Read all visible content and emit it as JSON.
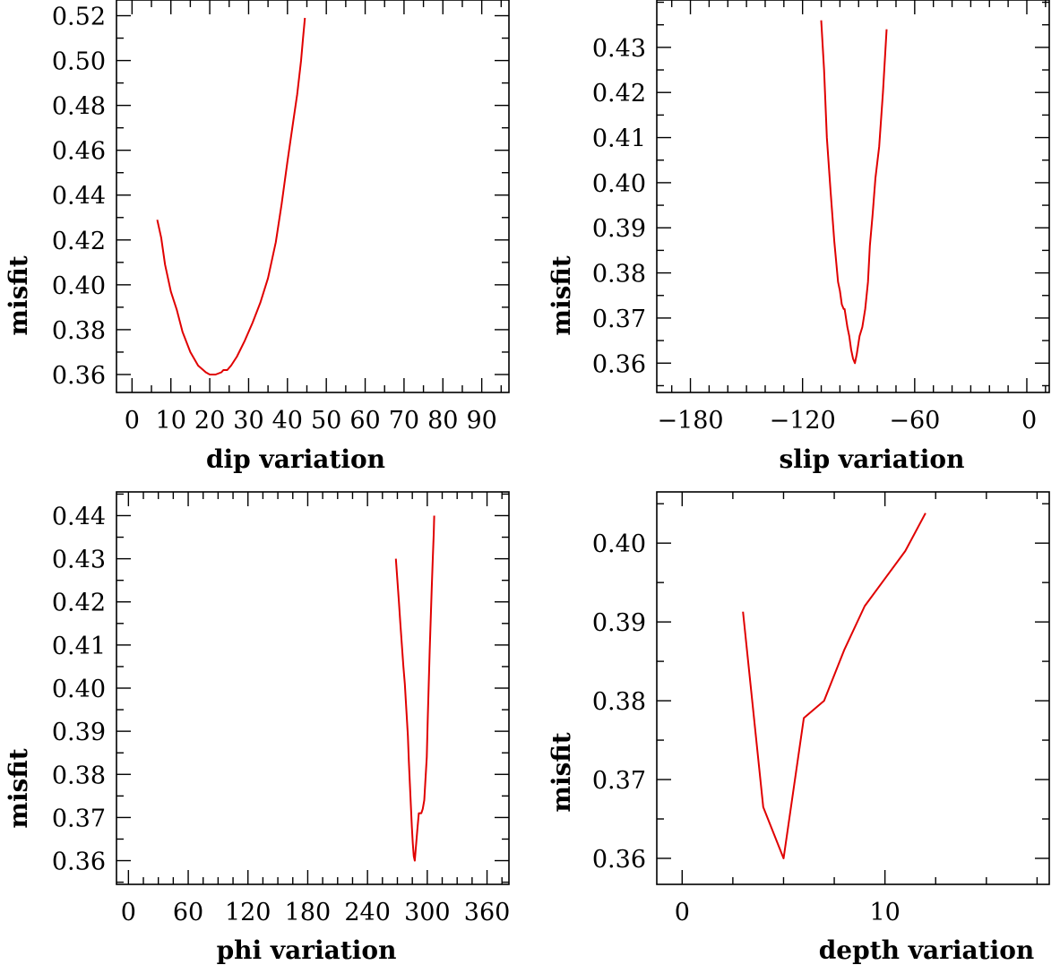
{
  "chart_data": [
    {
      "type": "line",
      "xlabel": "dip     variation",
      "ylabel": "misfit",
      "xlim": [
        -4,
        97
      ],
      "ylim": [
        0.352,
        0.527
      ],
      "xticks": [
        0,
        10,
        20,
        30,
        40,
        50,
        60,
        70,
        80,
        90
      ],
      "xtick_labels": [
        "0",
        "10",
        "20",
        "30",
        "40",
        "50",
        "60",
        "70",
        "80",
        "90"
      ],
      "xtick_anchor": [
        "middle",
        "middle",
        "middle",
        "middle",
        "middle",
        "middle",
        "middle",
        "middle",
        "middle",
        "middle"
      ],
      "yticks": [
        0.36,
        0.38,
        0.4,
        0.42,
        0.44,
        0.46,
        0.48,
        0.5,
        0.52
      ],
      "ytick_labels": [
        "0.36",
        "0.38",
        "0.40",
        "0.42",
        "0.44",
        "0.46",
        "0.48",
        "0.50",
        "0.52"
      ],
      "x_minor_step": 5,
      "y_minor_step": 0.01,
      "color": "#e00000",
      "series": [
        {
          "x": [
            6.5,
            7.5,
            8.5,
            10,
            11.5,
            13,
            15,
            17,
            19,
            20,
            21.5,
            23,
            23.5,
            24.5,
            25.5,
            27,
            29,
            31,
            33,
            35,
            37,
            38.5,
            40,
            41.5,
            42.5,
            43.5,
            44,
            44.5
          ],
          "y": [
            0.429,
            0.421,
            0.409,
            0.397,
            0.389,
            0.379,
            0.37,
            0.364,
            0.361,
            0.36,
            0.36,
            0.361,
            0.362,
            0.362,
            0.364,
            0.368,
            0.375,
            0.383,
            0.392,
            0.403,
            0.419,
            0.436,
            0.455,
            0.473,
            0.485,
            0.5,
            0.51,
            0.519
          ]
        }
      ]
    },
    {
      "type": "line",
      "xlabel": "slip    variation",
      "ylabel": "misfit",
      "xlim": [
        -198,
        12
      ],
      "ylim": [
        0.3535,
        0.4405
      ],
      "xticks": [
        -180,
        -120,
        -60,
        0
      ],
      "xtick_labels": [
        "−180",
        "−120",
        "−60",
        "0"
      ],
      "xtick_anchor": [
        "middle",
        "middle",
        "middle",
        "start"
      ],
      "yticks": [
        0.36,
        0.37,
        0.38,
        0.39,
        0.4,
        0.41,
        0.42,
        0.43
      ],
      "ytick_labels": [
        "0.36",
        "0.37",
        "0.38",
        "0.39",
        "0.40",
        "0.41",
        "0.42",
        "0.43"
      ],
      "x_minor_step": 10,
      "y_minor_step": 0.005,
      "color": "#e00000",
      "series": [
        {
          "x": [
            -110,
            -108.5,
            -107,
            -105,
            -103,
            -101,
            -100,
            -99,
            -98,
            -97.5,
            -96,
            -95,
            -94,
            -93,
            -92,
            -91,
            -89.5,
            -88,
            -86.5,
            -85,
            -84,
            -82.5,
            -81,
            -79,
            -77,
            -75
          ],
          "y": [
            0.436,
            0.425,
            0.41,
            0.398,
            0.387,
            0.378,
            0.376,
            0.373,
            0.372,
            0.372,
            0.368,
            0.366,
            0.363,
            0.361,
            0.36,
            0.362,
            0.366,
            0.368,
            0.372,
            0.378,
            0.386,
            0.393,
            0.401,
            0.408,
            0.42,
            0.434
          ]
        }
      ]
    },
    {
      "type": "line",
      "xlabel": "phi     variation",
      "ylabel": "misfit",
      "xlim": [
        -12,
        382
      ],
      "ylim": [
        0.3545,
        0.4455
      ],
      "xticks": [
        0,
        60,
        120,
        180,
        240,
        300,
        360
      ],
      "xtick_labels": [
        "0",
        "60",
        "120",
        "180",
        "240",
        "300",
        "360"
      ],
      "xtick_anchor": [
        "middle",
        "middle",
        "middle",
        "middle",
        "middle",
        "middle",
        "middle"
      ],
      "yticks": [
        0.36,
        0.37,
        0.38,
        0.39,
        0.4,
        0.41,
        0.42,
        0.43,
        0.44
      ],
      "ytick_labels": [
        "0.36",
        "0.37",
        "0.38",
        "0.39",
        "0.40",
        "0.41",
        "0.42",
        "0.43",
        "0.44"
      ],
      "x_minor_step": 15,
      "y_minor_step": 0.005,
      "color": "#e00000",
      "series": [
        {
          "x": [
            268.5,
            270,
            271.5,
            273,
            274.5,
            276,
            277.5,
            279,
            280.5,
            281.5,
            282.5,
            283.5,
            284.5,
            285.5,
            286.5,
            287.5,
            288.5,
            290,
            291.5,
            292.5,
            294,
            295.5,
            297,
            298,
            299.5,
            300.5,
            301.5,
            302.5,
            303.5,
            304.5,
            305.5,
            306.5,
            307
          ],
          "y": [
            0.43,
            0.425,
            0.42,
            0.415,
            0.41,
            0.405,
            0.401,
            0.395,
            0.389,
            0.383,
            0.378,
            0.373,
            0.368,
            0.364,
            0.361,
            0.36,
            0.363,
            0.367,
            0.371,
            0.371,
            0.371,
            0.372,
            0.374,
            0.378,
            0.384,
            0.393,
            0.401,
            0.409,
            0.416,
            0.423,
            0.43,
            0.436,
            0.44
          ]
        }
      ]
    },
    {
      "type": "line",
      "xlabel": "depth   variation",
      "ylabel": "misfit",
      "xlim": [
        -1.25,
        18.1
      ],
      "ylim": [
        0.3567,
        0.4065
      ],
      "xticks": [
        0,
        10
      ],
      "xtick_labels": [
        "0",
        "10"
      ],
      "xtick_anchor": [
        "middle",
        "middle"
      ],
      "yticks": [
        0.36,
        0.37,
        0.38,
        0.39,
        0.4
      ],
      "ytick_labels": [
        "0.36",
        "0.37",
        "0.38",
        "0.39",
        "0.40"
      ],
      "x_minor_step": 2.5,
      "y_minor_step": 0.005,
      "color": "#e00000",
      "series": [
        {
          "x": [
            3,
            4,
            5,
            6,
            7,
            8,
            9,
            10,
            11,
            12
          ],
          "y": [
            0.3913,
            0.3665,
            0.36,
            0.3778,
            0.38,
            0.3865,
            0.392,
            0.3955,
            0.399,
            0.4038
          ]
        }
      ]
    }
  ]
}
